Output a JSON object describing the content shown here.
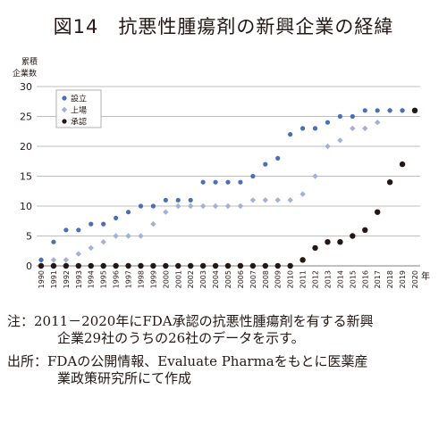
{
  "title": "図14　抗悪性腫瘍剤の新興企業の経緯",
  "y_unit_line1": "累積",
  "y_unit_line2": "企業数",
  "x_unit": "年",
  "note_line1": "注：2011－2020年にFDA承認の抗悪性腫瘍剤を有する新興",
  "note_line2": "企業29社のうちの26社のデータを示す。",
  "source_line1": "出所：FDAの公開情報、Evaluate Pharmaをもとに医薬産",
  "source_line2": "業政策研究所にて作成",
  "chart_data": {
    "type": "scatter",
    "title": "図14　抗悪性腫瘍剤の新興企業の経緯",
    "ylabel": "累積 企業数",
    "xlabel": "年",
    "ylim": [
      0,
      30
    ],
    "yticks": [
      0,
      5,
      10,
      15,
      20,
      25,
      30
    ],
    "grid": true,
    "legend_position": "top-left",
    "x": [
      1990,
      1991,
      1992,
      1993,
      1994,
      1995,
      1996,
      1997,
      1998,
      1999,
      2000,
      2001,
      2002,
      2003,
      2004,
      2005,
      2006,
      2007,
      2008,
      2009,
      2010,
      2011,
      2012,
      2013,
      2014,
      2015,
      2016,
      2017,
      2018,
      2019,
      2020
    ],
    "series": [
      {
        "name": "設立",
        "color": "#4a6fb5",
        "marker": "circle",
        "values": [
          1,
          4,
          6,
          6,
          7,
          7,
          8,
          9,
          10,
          10,
          11,
          11,
          11,
          14,
          14,
          14,
          14,
          15,
          17,
          18,
          22,
          23,
          23,
          24,
          25,
          25,
          26,
          26,
          26,
          26,
          26
        ]
      },
      {
        "name": "上場",
        "color": "#a3b1d8",
        "marker": "diamond",
        "values": [
          1,
          1,
          1,
          2,
          3,
          4,
          5,
          5,
          5,
          7,
          9,
          10,
          10,
          10,
          10,
          10,
          10,
          11,
          11,
          11,
          11,
          12,
          15,
          20,
          21,
          23,
          23,
          24,
          26,
          26,
          26
        ]
      },
      {
        "name": "承認",
        "color": "#231815",
        "marker": "circle",
        "values": [
          0,
          0,
          0,
          0,
          0,
          0,
          0,
          0,
          0,
          0,
          0,
          0,
          0,
          0,
          0,
          0,
          0,
          0,
          0,
          0,
          0,
          1,
          3,
          4,
          4,
          5,
          6,
          9,
          14,
          17,
          26
        ]
      }
    ]
  }
}
